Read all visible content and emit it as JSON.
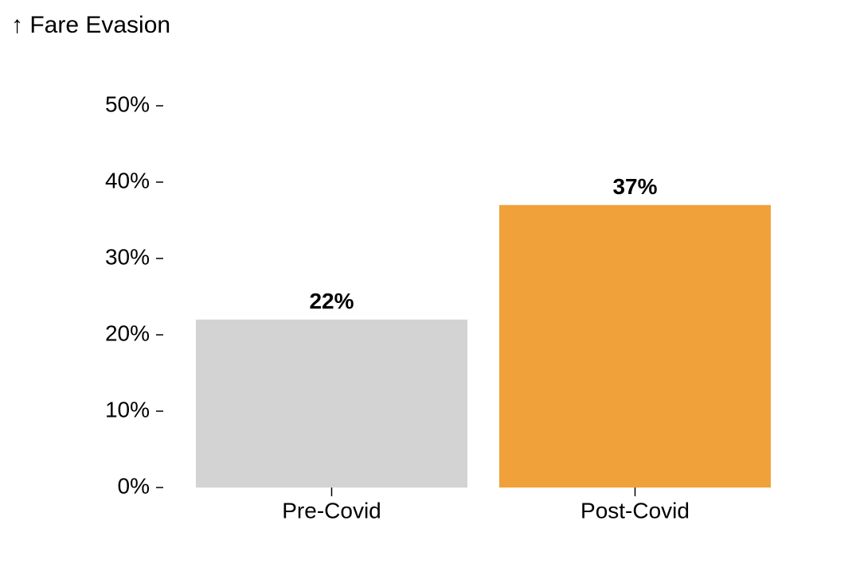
{
  "chart_data": {
    "type": "bar",
    "y_label": "↑ Fare Evasion",
    "categories": [
      "Pre-Covid",
      "Post-Covid"
    ],
    "values": [
      22,
      37
    ],
    "value_labels": [
      "22%",
      "37%"
    ],
    "colors": [
      "#d3d3d3",
      "#f0a13a"
    ],
    "ylim": [
      0,
      50
    ],
    "yticks": [
      {
        "value": 0,
        "label": "0%"
      },
      {
        "value": 10,
        "label": "10%"
      },
      {
        "value": 20,
        "label": "20%"
      },
      {
        "value": 30,
        "label": "30%"
      },
      {
        "value": 40,
        "label": "40%"
      },
      {
        "value": 50,
        "label": "50%"
      }
    ]
  }
}
